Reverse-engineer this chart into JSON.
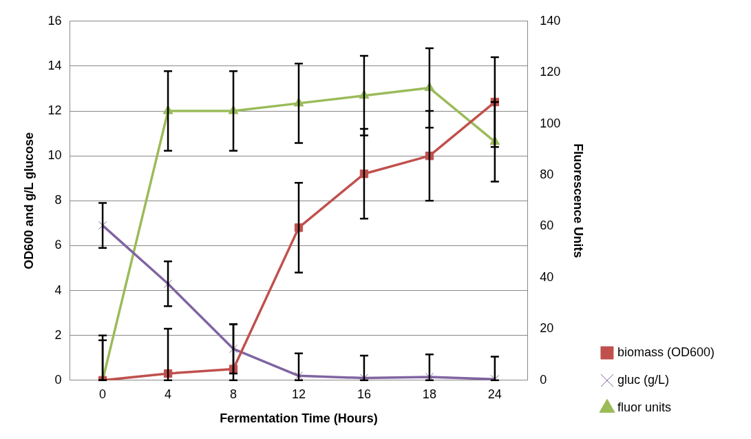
{
  "chart_data": {
    "type": "line",
    "xlabel": "Fermentation Time (Hours)",
    "ylabel": "OD600 and g/L glucose",
    "y2label": "Fluorescence Units",
    "categories": [
      "0",
      "4",
      "8",
      "12",
      "16",
      "18",
      "24"
    ],
    "series": [
      {
        "name": "biomass (OD600)",
        "color": "#c0504d",
        "marker": "square",
        "values": [
          0.0,
          0.3,
          0.5,
          6.8,
          9.2,
          10.0,
          12.4
        ],
        "errors": [
          [
            0,
            2
          ],
          [
            0,
            2.3
          ],
          [
            0,
            2.5
          ],
          2,
          2,
          2,
          2
        ]
      },
      {
        "name": "gluc (g/L)",
        "color": "#8064a2",
        "marker": "cross",
        "values": [
          6.9,
          4.3,
          1.4,
          0.2,
          0.1,
          0.15,
          0.05
        ],
        "errors": [
          1,
          1,
          1.1,
          [
            0,
            1.2
          ],
          [
            0,
            1.1
          ],
          [
            0,
            1.15
          ],
          [
            0,
            1.05
          ]
        ]
      },
      {
        "name": "fluor units",
        "color": "#9bbb59",
        "marker": "triangle",
        "axis": "y2",
        "values": [
          0,
          105,
          105,
          108,
          111,
          114,
          93
        ],
        "errors": [
          [
            0,
            15.6
          ],
          15.5,
          15.5,
          15.5,
          15.5,
          15.5,
          15.5
        ]
      }
    ],
    "ylim": [
      0,
      16
    ],
    "yticks": [
      0,
      2,
      4,
      6,
      8,
      10,
      12,
      14,
      16
    ],
    "y2lim": [
      0,
      140
    ],
    "y2ticks": [
      0,
      20,
      40,
      60,
      80,
      100,
      120,
      140
    ],
    "grid": "y",
    "legend": "right"
  }
}
